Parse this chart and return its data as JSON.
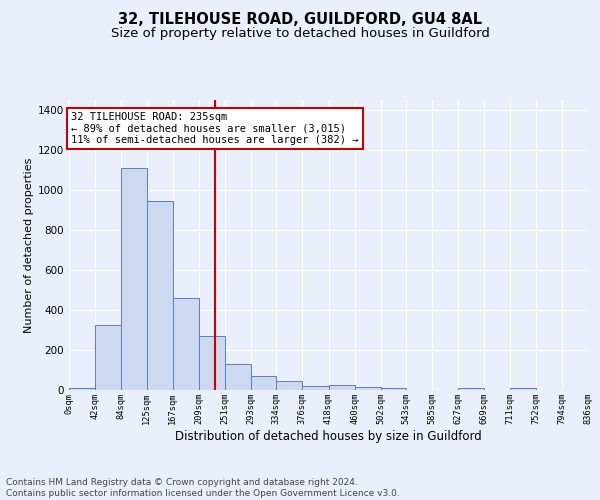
{
  "title": "32, TILEHOUSE ROAD, GUILDFORD, GU4 8AL",
  "subtitle": "Size of property relative to detached houses in Guildford",
  "xlabel": "Distribution of detached houses by size in Guildford",
  "ylabel": "Number of detached properties",
  "bar_edges": [
    0,
    42,
    84,
    125,
    167,
    209,
    251,
    293,
    334,
    376,
    418,
    460,
    502,
    543,
    585,
    627,
    669,
    711,
    752,
    794,
    836
  ],
  "bar_heights": [
    10,
    325,
    1110,
    945,
    462,
    270,
    130,
    70,
    45,
    18,
    25,
    15,
    8,
    0,
    0,
    8,
    0,
    10,
    0,
    0
  ],
  "bar_color": "#ccd9f0",
  "bar_edge_color": "#5a7fc0",
  "vline_x": 235,
  "vline_color": "#cc0000",
  "annotation_line1": "32 TILEHOUSE ROAD: 235sqm",
  "annotation_line2": "← 89% of detached houses are smaller (3,015)",
  "annotation_line3": "11% of semi-detached houses are larger (382) →",
  "ylim": [
    0,
    1450
  ],
  "yticks": [
    0,
    200,
    400,
    600,
    800,
    1000,
    1200,
    1400
  ],
  "xtick_labels": [
    "0sqm",
    "42sqm",
    "84sqm",
    "125sqm",
    "167sqm",
    "209sqm",
    "251sqm",
    "293sqm",
    "334sqm",
    "376sqm",
    "418sqm",
    "460sqm",
    "502sqm",
    "543sqm",
    "585sqm",
    "627sqm",
    "669sqm",
    "711sqm",
    "752sqm",
    "794sqm",
    "836sqm"
  ],
  "bg_color": "#eaf0fb",
  "plot_bg_color": "#eaf0fb",
  "footer_text": "Contains HM Land Registry data © Crown copyright and database right 2024.\nContains public sector information licensed under the Open Government Licence v3.0.",
  "title_fontsize": 10.5,
  "subtitle_fontsize": 9.5,
  "annotation_fontsize": 7.5,
  "footer_fontsize": 6.5,
  "ylabel_fontsize": 8,
  "xlabel_fontsize": 8.5
}
